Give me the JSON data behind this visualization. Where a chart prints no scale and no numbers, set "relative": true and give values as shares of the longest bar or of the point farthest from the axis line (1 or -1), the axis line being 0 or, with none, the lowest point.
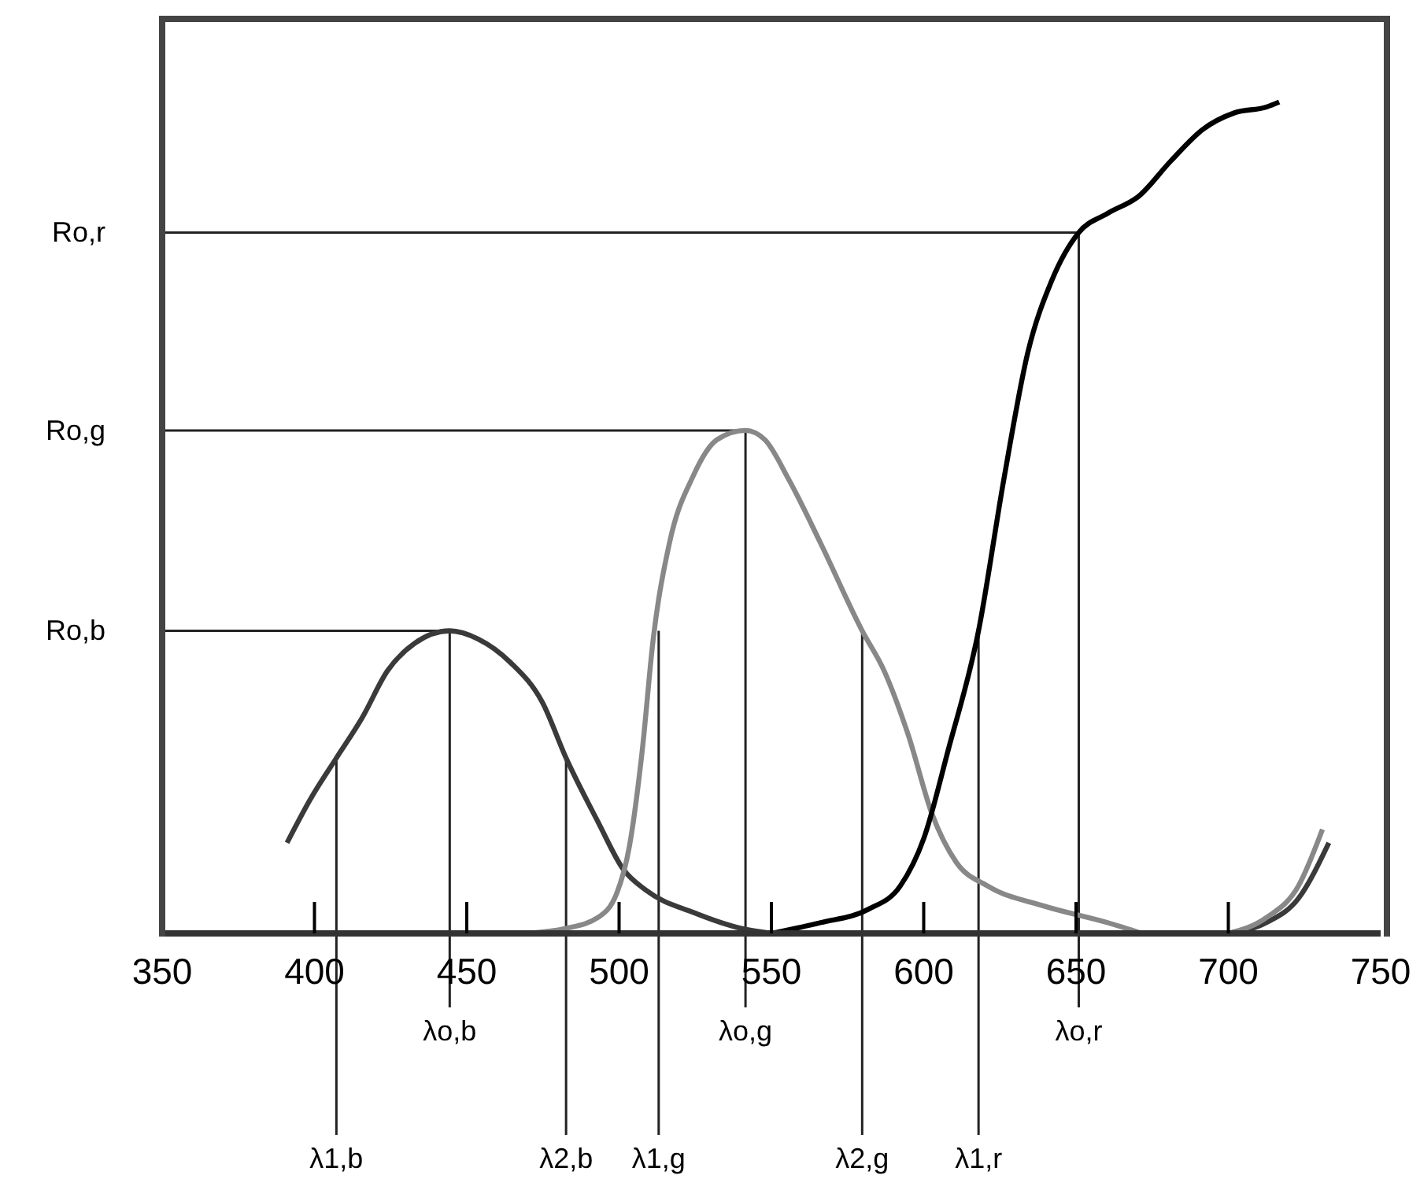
{
  "chart_data": {
    "type": "line",
    "relative": true,
    "xlim": [
      350,
      750
    ],
    "xticks": [
      350,
      400,
      450,
      500,
      550,
      600,
      650,
      700,
      750
    ],
    "marker": "none",
    "line_style": "solid",
    "series": [
      {
        "color": "#3a3a3a",
        "x": [
          391.0,
          398.9,
          407.2,
          415.6,
          424.0,
          432.9,
          444.4,
          453.8,
          464.3,
          474.8,
          482.6,
          493.1,
          501.4,
          508.8,
          524.5,
          540.1,
          550,
          625,
          700,
          712.5,
          723,
          733
        ],
        "values": [
          0.109,
          0.163,
          0.211,
          0.259,
          0.316,
          0.349,
          0.364,
          0.354,
          0.326,
          0.278,
          0.211,
          0.134,
          0.077,
          0.052,
          0.025,
          0.006,
          0,
          null,
          0,
          0.013,
          0.042,
          0.109
        ]
      },
      {
        "color": "#888888",
        "x": [
          469.4,
          482.5,
          493,
          499.2,
          503.4,
          507.6,
          511.2,
          516.5,
          524.3,
          532.2,
          541.5,
          547.8,
          555.7,
          566.2,
          579.8,
          587,
          594.9,
          602.7,
          610.6,
          621,
          639.4,
          660.3,
          671.7,
          686,
          700,
          712.5,
          723,
          730.9
        ],
        "values": [
          0,
          0.006,
          0.019,
          0.048,
          0.105,
          0.22,
          0.354,
          0.469,
          0.55,
          0.594,
          0.605,
          0.594,
          0.546,
          0.469,
          0.364,
          0.316,
          0.239,
          0.144,
          0.086,
          0.057,
          0.033,
          0.013,
          0,
          null,
          0,
          0.019,
          0.057,
          0.125
        ]
      },
      {
        "color": "#000000",
        "x": [
          550,
          566.2,
          581.8,
          592.3,
          600.1,
          608,
          618,
          626.3,
          634.2,
          642,
          650.9,
          660.3,
          670.7,
          681.1,
          691.6,
          702,
          712.5,
          716.7
        ],
        "values": [
          0,
          0.013,
          0.029,
          0.057,
          0.115,
          0.22,
          0.364,
          0.546,
          0.699,
          0.785,
          0.843,
          0.866,
          0.887,
          0.929,
          0.967,
          0.987,
          0.994,
          1
        ]
      }
    ],
    "ref_lines": [
      {
        "axis": "y",
        "value": 0.364,
        "label": "Ro,b"
      },
      {
        "axis": "y",
        "value": 0.605,
        "label": "Ro,g"
      },
      {
        "axis": "y",
        "value": 0.843,
        "label": "Ro,r"
      },
      {
        "axis": "x",
        "value": 444.4,
        "label": "λo,b"
      },
      {
        "axis": "x",
        "value": 541.5,
        "label": "λo,g"
      },
      {
        "axis": "x",
        "value": 650.9,
        "label": "λo,r"
      }
    ],
    "annotations": [
      {
        "text": "λ1,b",
        "x": 407.2,
        "y": 0.211
      },
      {
        "text": "λ2,b",
        "x": 482.6,
        "y": 0.211
      },
      {
        "text": "λ1,g",
        "x": 513,
        "y": 0.364
      },
      {
        "text": "λ2,g",
        "x": 579.8,
        "y": 0.364
      },
      {
        "text": "λ1,r",
        "x": 618,
        "y": 0.364
      }
    ]
  }
}
